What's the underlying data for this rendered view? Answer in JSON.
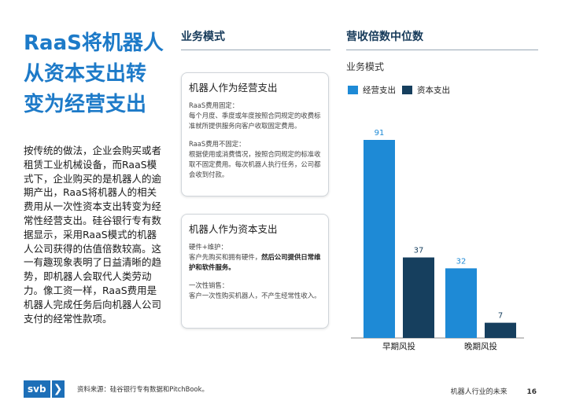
{
  "left": {
    "title": "RaaS将机器人从资本支出转变为经营支出",
    "body": "按传统的做法，企业会购买或者租赁工业机械设备，而RaaS模式下，企业购买的是机器人的逾期产出，RaaS将机器人的相关费用从一次性资本支出转变为经常性经营支出。硅谷银行专有数据显示，采用RaaS模式的机器人公司获得的估值倍数较高。这一有趣现象表明了日益清晰的趋势，即机器人会取代人类劳动力。像工资一样，RaaS费用是机器人完成任务后向机器人公司支付的经常性款项。"
  },
  "middle": {
    "heading": "业务模式",
    "card1": {
      "title": "机器人作为经营支出",
      "sub1": "RaaS费用固定：",
      "para1": "每个月度、季度或年度按照合同规定的收费标准就所提供服务向客户收取固定费用。",
      "sub2": "RaaS费用不固定：",
      "para2": "根据使用或消费情况，按照合同规定的标准收取不固定费用。每次机器人执行任务，公司都会收到付款。"
    },
    "card2": {
      "title": "机器人作为资本支出",
      "sub1": "硬件+维护：",
      "para1_plain": "客户先购买和拥有硬件，",
      "para1_bold": "然后公司提供日常维护和软件服务。",
      "sub2": "一次性销售：",
      "para2": "客户一次性购买机器人，不产生经常性收入。"
    }
  },
  "right": {
    "heading": "营收倍数中位数",
    "subtitle": "业务模式"
  },
  "chart_data": {
    "type": "bar",
    "categories": [
      "早期风投",
      "晚期风投"
    ],
    "series": [
      {
        "name": "经营支出",
        "values": [
          91,
          32
        ],
        "color": "#1e8ad6"
      },
      {
        "name": "资本支出",
        "values": [
          37,
          7
        ],
        "color": "#163f5e"
      }
    ],
    "data_labels": true,
    "ylim": [
      0,
      91
    ],
    "legend": "top-left",
    "grid": false
  },
  "footer": {
    "logo": "svb",
    "source": "资料来源：硅谷银行专有数据和PitchBook。",
    "doc_title": "机器人行业的未来",
    "page": "16"
  },
  "colors": {
    "title_blue": "#1d7ac8",
    "dark_navy": "#163f5e",
    "bar_blue": "#1e8ad6"
  }
}
